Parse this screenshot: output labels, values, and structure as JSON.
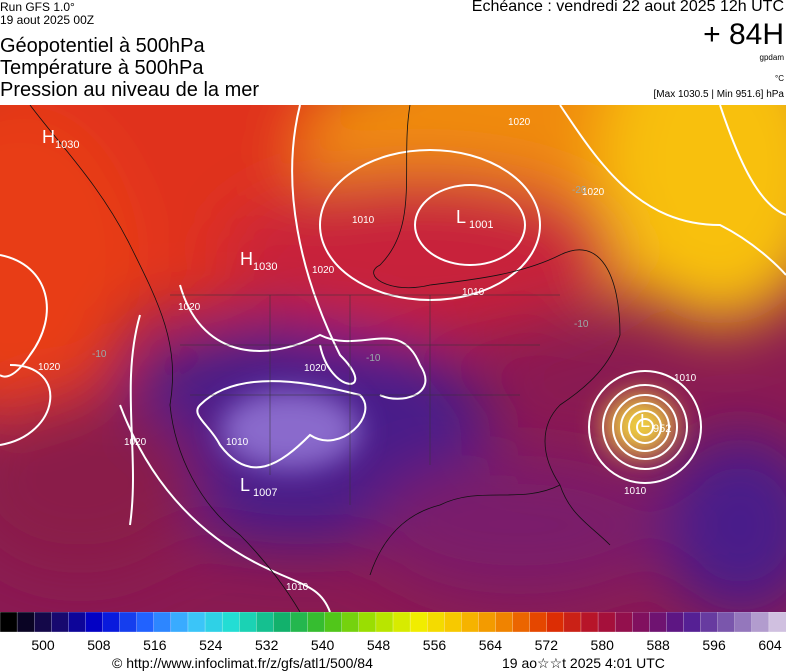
{
  "header": {
    "run": "Run GFS 1.0°",
    "date": "19 aout 2025 00Z",
    "title_lines": [
      "Géopotentiel à 500hPa",
      "Température à 500hPa",
      "Pression au niveau de la mer"
    ],
    "echeance": "Echéance : vendredi 22 aout 2025 12h UTC",
    "lead": "+ 84H",
    "unit_geo": "gpdam",
    "unit_temp": "°C",
    "extremes": "[Max 1030.5 | Min 951.6] hPa"
  },
  "map": {
    "pressure_centers": [
      {
        "letter": "H",
        "value": "1030"
      },
      {
        "letter": "H",
        "value": "1030"
      },
      {
        "letter": "L",
        "value": "1001"
      },
      {
        "letter": "L",
        "value": "1007"
      },
      {
        "letter": "L",
        "value": "952"
      }
    ],
    "isobar_labels": [
      "1020",
      "1020",
      "1010",
      "1020",
      "1010",
      "1020",
      "1020",
      "1020",
      "1020",
      "1010",
      "1010",
      "1010",
      "1010"
    ],
    "temperature_labels": [
      "-20",
      "-10",
      "-10",
      "-10"
    ]
  },
  "colorbar": {
    "labels": [
      "500",
      "508",
      "516",
      "524",
      "532",
      "540",
      "548",
      "556",
      "564",
      "572",
      "580",
      "588",
      "596",
      "604"
    ]
  },
  "footer": {
    "source": "© http://www.infoclimat.fr/z/gfs/atl1/500/84",
    "timestamp": "19 ao☆☆t 2025  4:01 UTC"
  }
}
